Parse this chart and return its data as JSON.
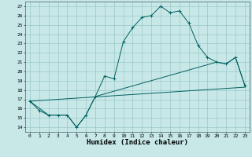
{
  "title": "",
  "xlabel": "Humidex (Indice chaleur)",
  "bg_color": "#c8e8e8",
  "line_color": "#006060",
  "xlim": [
    -0.5,
    23.5
  ],
  "ylim": [
    13.5,
    27.5
  ],
  "yticks": [
    14,
    15,
    16,
    17,
    18,
    19,
    20,
    21,
    22,
    23,
    24,
    25,
    26,
    27
  ],
  "xticks": [
    0,
    1,
    2,
    3,
    4,
    5,
    6,
    7,
    8,
    9,
    10,
    11,
    12,
    13,
    14,
    15,
    16,
    17,
    18,
    19,
    20,
    21,
    22,
    23
  ],
  "line1_x": [
    0,
    1,
    2,
    3,
    4,
    5,
    6,
    7,
    8,
    9,
    10,
    11,
    12,
    13,
    14,
    15,
    16,
    17,
    18,
    19,
    20,
    21,
    22,
    23
  ],
  "line1_y": [
    16.8,
    15.8,
    15.3,
    15.3,
    15.3,
    14.0,
    15.3,
    17.3,
    19.5,
    19.2,
    23.2,
    24.7,
    25.8,
    26.0,
    27.0,
    26.3,
    26.5,
    25.2,
    22.8,
    21.5,
    21.0,
    20.8,
    21.5,
    18.5
  ],
  "line2_x": [
    0,
    2,
    3,
    4,
    5,
    6,
    7,
    20,
    21,
    22,
    23
  ],
  "line2_y": [
    16.8,
    15.3,
    15.3,
    15.3,
    14.0,
    15.3,
    17.3,
    21.0,
    20.8,
    21.5,
    18.5
  ],
  "line3_x": [
    0,
    23
  ],
  "line3_y": [
    16.8,
    18.3
  ],
  "tick_fontsize": 4.5,
  "xlabel_fontsize": 6.5
}
